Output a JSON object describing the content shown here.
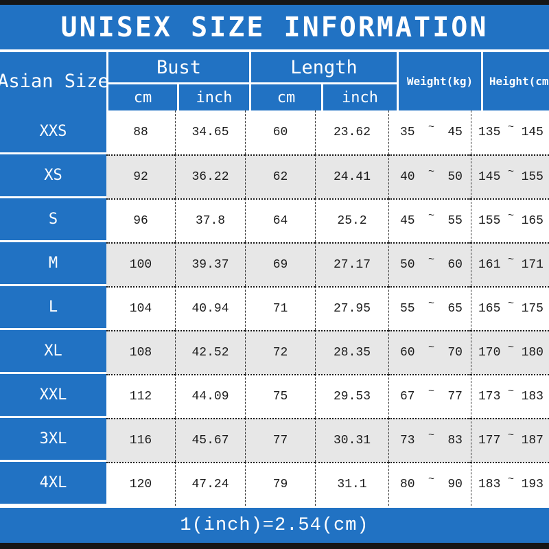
{
  "title": "UNISEX SIZE INFORMATION",
  "tilde": "~",
  "footer_note": "1(inch)=2.54(cm)",
  "columns": {
    "asian_size": "Asian Size",
    "bust": "Bust",
    "length": "Length",
    "cm": "cm",
    "inch": "inch",
    "weight": "Weight(kg)",
    "height": "Height(cm)"
  },
  "rows": [
    {
      "size": "XXS",
      "bust_cm": "88",
      "bust_inch": "34.65",
      "length_cm": "60",
      "length_inch": "23.62",
      "weight_min": "35",
      "weight_max": "45",
      "height_min": "135",
      "height_max": "145"
    },
    {
      "size": "XS",
      "bust_cm": "92",
      "bust_inch": "36.22",
      "length_cm": "62",
      "length_inch": "24.41",
      "weight_min": "40",
      "weight_max": "50",
      "height_min": "145",
      "height_max": "155"
    },
    {
      "size": "S",
      "bust_cm": "96",
      "bust_inch": "37.8",
      "length_cm": "64",
      "length_inch": "25.2",
      "weight_min": "45",
      "weight_max": "55",
      "height_min": "155",
      "height_max": "165"
    },
    {
      "size": "M",
      "bust_cm": "100",
      "bust_inch": "39.37",
      "length_cm": "69",
      "length_inch": "27.17",
      "weight_min": "50",
      "weight_max": "60",
      "height_min": "161",
      "height_max": "171"
    },
    {
      "size": "L",
      "bust_cm": "104",
      "bust_inch": "40.94",
      "length_cm": "71",
      "length_inch": "27.95",
      "weight_min": "55",
      "weight_max": "65",
      "height_min": "165",
      "height_max": "175"
    },
    {
      "size": "XL",
      "bust_cm": "108",
      "bust_inch": "42.52",
      "length_cm": "72",
      "length_inch": "28.35",
      "weight_min": "60",
      "weight_max": "70",
      "height_min": "170",
      "height_max": "180"
    },
    {
      "size": "XXL",
      "bust_cm": "112",
      "bust_inch": "44.09",
      "length_cm": "75",
      "length_inch": "29.53",
      "weight_min": "67",
      "weight_max": "77",
      "height_min": "173",
      "height_max": "183"
    },
    {
      "size": "3XL",
      "bust_cm": "116",
      "bust_inch": "45.67",
      "length_cm": "77",
      "length_inch": "30.31",
      "weight_min": "73",
      "weight_max": "83",
      "height_min": "177",
      "height_max": "187"
    },
    {
      "size": "4XL",
      "bust_cm": "120",
      "bust_inch": "47.24",
      "length_cm": "79",
      "length_inch": "31.1",
      "weight_min": "80",
      "weight_max": "90",
      "height_min": "183",
      "height_max": "193"
    }
  ],
  "colors": {
    "blue": "#2172c3",
    "alt_row": "#e7e7e7",
    "bar": "#161616",
    "text": "#1c1c1c"
  },
  "chart_data": {
    "type": "table",
    "title": "UNISEX SIZE INFORMATION",
    "columns": [
      "Asian Size",
      "Bust cm",
      "Bust inch",
      "Length cm",
      "Length inch",
      "Weight(kg)",
      "Height(cm)"
    ],
    "rows": [
      [
        "XXS",
        88,
        34.65,
        60,
        23.62,
        "35~45",
        "135~145"
      ],
      [
        "XS",
        92,
        36.22,
        62,
        24.41,
        "40~50",
        "145~155"
      ],
      [
        "S",
        96,
        37.8,
        64,
        25.2,
        "45~55",
        "155~165"
      ],
      [
        "M",
        100,
        39.37,
        69,
        27.17,
        "50~60",
        "161~171"
      ],
      [
        "L",
        104,
        40.94,
        71,
        27.95,
        "55~65",
        "165~175"
      ],
      [
        "XL",
        108,
        42.52,
        72,
        28.35,
        "60~70",
        "170~180"
      ],
      [
        "XXL",
        112,
        44.09,
        75,
        29.53,
        "67~77",
        "173~183"
      ],
      [
        "3XL",
        116,
        45.67,
        77,
        30.31,
        "73~83",
        "177~187"
      ],
      [
        "4XL",
        120,
        47.24,
        79,
        31.1,
        "80~90",
        "183~193"
      ]
    ],
    "note": "1(inch)=2.54(cm)"
  }
}
